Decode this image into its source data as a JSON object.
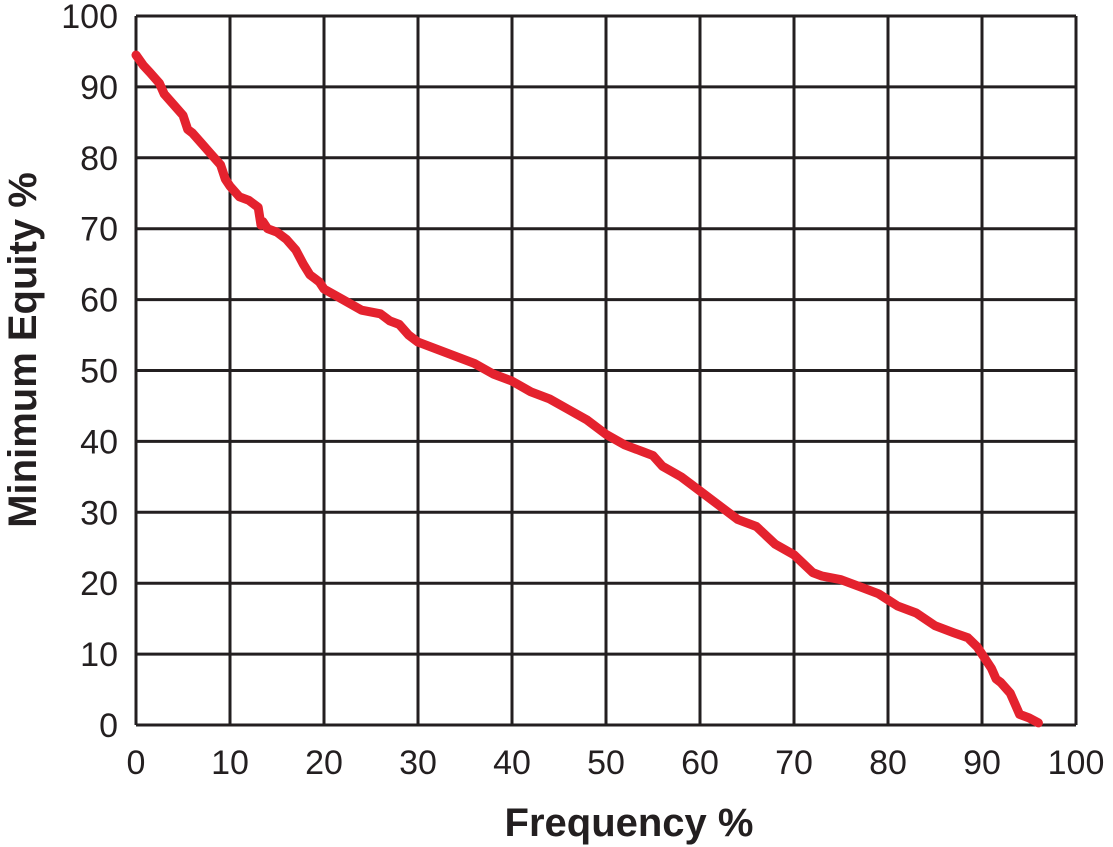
{
  "chart_data": {
    "type": "line",
    "title": "",
    "xlabel": "Frequency %",
    "ylabel": "Minimum Equity %",
    "xlim": [
      0,
      100
    ],
    "ylim": [
      0,
      100
    ],
    "xticks": [
      0,
      10,
      20,
      30,
      40,
      50,
      60,
      70,
      80,
      90,
      100
    ],
    "yticks": [
      0,
      10,
      20,
      30,
      40,
      50,
      60,
      70,
      80,
      90,
      100
    ],
    "grid": true,
    "legend": "none",
    "series": [
      {
        "color": "#e4222e",
        "x": [
          0,
          0.8,
          1.5,
          2.5,
          3,
          4,
          5,
          5.5,
          6,
          7,
          8,
          9,
          9.5,
          10,
          11,
          12,
          13,
          13.3,
          13.5,
          14,
          15,
          16,
          17,
          17.8,
          18.5,
          19,
          19.5,
          20,
          22,
          24,
          26,
          27,
          28,
          29,
          30,
          32,
          34,
          36,
          38,
          40,
          42,
          44,
          46,
          48,
          50,
          52,
          54,
          55,
          56,
          58,
          60,
          62,
          64,
          66,
          68,
          70,
          72,
          73,
          75,
          77,
          79,
          81,
          83,
          85,
          87,
          88.5,
          89.5,
          91,
          91.5,
          92,
          93,
          93.5,
          94,
          95,
          96
        ],
        "y": [
          94.5,
          93,
          92,
          90.5,
          89,
          87.5,
          86,
          84,
          83.5,
          82,
          80.5,
          79,
          77,
          76,
          74.5,
          74,
          73,
          70.5,
          71,
          70,
          69.5,
          68.5,
          67,
          65,
          63.5,
          63,
          62.5,
          61.5,
          60,
          58.5,
          58,
          57,
          56.5,
          55,
          54,
          53,
          52,
          51,
          49.5,
          48.5,
          47,
          46,
          44.5,
          43,
          41,
          39.5,
          38.5,
          38,
          36.5,
          35,
          33,
          31,
          29,
          28,
          25.5,
          24,
          21.5,
          21,
          20.5,
          19.5,
          18.5,
          16.8,
          15.8,
          14,
          13,
          12.3,
          11,
          8,
          6.5,
          6,
          4.5,
          3,
          1.5,
          1,
          0.3
        ]
      }
    ]
  }
}
